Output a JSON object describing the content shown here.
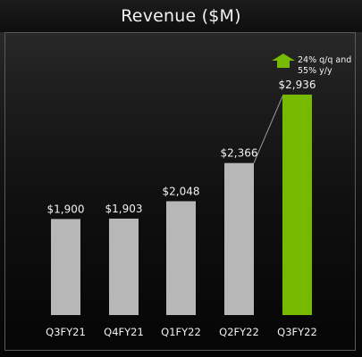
{
  "chart_data": {
    "type": "bar",
    "title": "Revenue ($M)",
    "categories": [
      "Q3FY21",
      "Q4FY21",
      "Q1FY22",
      "Q2FY22",
      "Q3FY22"
    ],
    "values": [
      1900,
      1903,
      2048,
      2366,
      2936
    ],
    "value_labels": [
      "$1,900",
      "$1,903",
      "$2,048",
      "$2,366",
      "$2,936"
    ],
    "highlight_index": 4,
    "annotation": {
      "line1": "24% q/q and",
      "line2": "55% y/y",
      "icon": "up-arrow-icon"
    },
    "colors": {
      "bar": "#b7b7b7",
      "highlight": "#76b900",
      "text": "#f2f2f2"
    }
  }
}
